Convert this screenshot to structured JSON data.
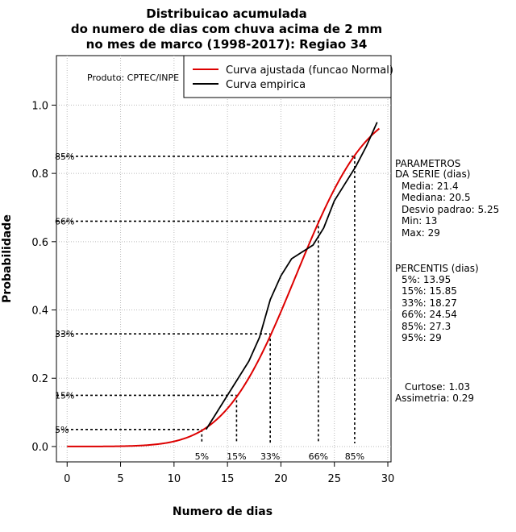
{
  "chart_data": {
    "type": "line",
    "title": [
      "Distribuicao acumulada",
      "do numero de dias com chuva acima de 2 mm",
      "no mes de marco (1998-2017): Regiao 34"
    ],
    "xlabel": "Numero de dias",
    "ylabel": "Probabilidade",
    "xlim": [
      -1,
      30.3
    ],
    "ylim": [
      -0.045,
      1.145
    ],
    "x_ticks": [
      0,
      5,
      10,
      15,
      20,
      25,
      30
    ],
    "y_ticks": [
      0.0,
      0.2,
      0.4,
      0.6,
      0.8,
      1.0
    ],
    "y_tick_labels": [
      "0.0",
      "0.2",
      "0.4",
      "0.6",
      "0.8",
      "1.0"
    ],
    "grid": true,
    "credit": "Produto: CPTEC/INPE",
    "legend": {
      "position": "top-right",
      "entries": [
        {
          "label": "Curva ajustada (funcao Normal)",
          "color": "#dd0000"
        },
        {
          "label": "Curva empirica",
          "color": "#000000"
        }
      ]
    },
    "normal_fit": {
      "name": "Curva ajustada (funcao Normal)",
      "mean": 21.4,
      "sd": 5.25,
      "x_range": [
        0,
        29.2
      ],
      "color": "#dd0000"
    },
    "empirical": {
      "name": "Curva empirica",
      "color": "#000000",
      "x": [
        13,
        14,
        15,
        16,
        17,
        18,
        19,
        20,
        21,
        22,
        23,
        24,
        25,
        26,
        27,
        28,
        29
      ],
      "y": [
        0.05,
        0.1,
        0.15,
        0.2,
        0.25,
        0.32,
        0.43,
        0.5,
        0.55,
        0.57,
        0.59,
        0.64,
        0.72,
        0.77,
        0.82,
        0.88,
        0.95
      ]
    },
    "percentile_lines": [
      {
        "label": "5%",
        "x": 12.6,
        "y": 0.05
      },
      {
        "label": "15%",
        "x": 15.85,
        "y": 0.15
      },
      {
        "label": "33%",
        "x": 19.0,
        "y": 0.33
      },
      {
        "label": "66%",
        "x": 23.5,
        "y": 0.66
      },
      {
        "label": "85%",
        "x": 26.9,
        "y": 0.85
      }
    ],
    "parametros": {
      "heading": [
        "PARAMETROS",
        "DA SERIE (dias)"
      ],
      "lines": [
        "Media: 21.4",
        "Mediana: 20.5",
        "Desvio padrao: 5.25",
        "Min: 13",
        "Max: 29"
      ]
    },
    "percentis": {
      "heading": "PERCENTIS (dias)",
      "lines": [
        "5%: 13.95",
        "15%: 15.85",
        "33%: 18.27",
        "66%: 24.54",
        "85%: 27.3",
        "95%: 29"
      ]
    },
    "shape": {
      "lines": [
        "Curtose: 1.03",
        "Assimetria: 0.29"
      ]
    }
  }
}
